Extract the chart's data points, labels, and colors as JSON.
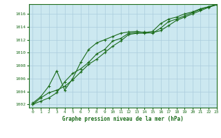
{
  "title": "Graphe pression niveau de la mer (hPa)",
  "background_color": "#cce8f0",
  "outer_background": "#ffffff",
  "line_color": "#1a6b1a",
  "grid_color": "#aaccdd",
  "xlim": [
    -0.5,
    23
  ],
  "ylim": [
    1001.5,
    1017.5
  ],
  "yticks": [
    1002,
    1004,
    1006,
    1008,
    1010,
    1012,
    1014,
    1016
  ],
  "xticks": [
    0,
    1,
    2,
    3,
    4,
    5,
    6,
    7,
    8,
    9,
    10,
    11,
    12,
    13,
    14,
    15,
    16,
    17,
    18,
    19,
    20,
    21,
    22,
    23
  ],
  "line1_x": [
    0,
    1,
    2,
    3,
    4,
    5,
    6,
    7,
    8,
    9,
    10,
    11,
    12,
    13,
    14,
    15,
    16,
    17,
    18,
    19,
    20,
    21,
    22,
    23
  ],
  "line1_y": [
    1002.0,
    1003.0,
    1003.8,
    1004.2,
    1004.8,
    1005.8,
    1007.0,
    1008.2,
    1009.0,
    1010.0,
    1011.0,
    1011.8,
    1012.8,
    1013.0,
    1013.0,
    1013.1,
    1013.4,
    1014.2,
    1015.0,
    1015.5,
    1016.0,
    1016.5,
    1017.0,
    1017.4
  ],
  "line2_x": [
    0,
    1,
    2,
    3,
    4,
    5,
    6,
    7,
    8,
    9,
    10,
    11,
    12,
    13,
    14,
    15,
    16,
    17,
    18,
    19,
    20,
    21,
    22,
    23
  ],
  "line2_y": [
    1002.2,
    1003.2,
    1004.8,
    1007.2,
    1004.2,
    1006.0,
    1008.5,
    1010.5,
    1011.5,
    1012.0,
    1012.5,
    1013.0,
    1013.2,
    1013.3,
    1013.1,
    1013.3,
    1014.5,
    1015.2,
    1015.5,
    1016.0,
    1016.3,
    1016.8,
    1017.1,
    1017.5
  ],
  "line3_x": [
    0,
    1,
    2,
    3,
    4,
    5,
    6,
    7,
    8,
    9,
    10,
    11,
    12,
    13,
    14,
    15,
    16,
    17,
    18,
    19,
    20,
    21,
    22,
    23
  ],
  "line3_y": [
    1002.0,
    1002.5,
    1003.0,
    1003.8,
    1005.5,
    1006.8,
    1007.5,
    1008.5,
    1009.8,
    1010.5,
    1011.8,
    1012.2,
    1013.0,
    1013.1,
    1013.2,
    1013.0,
    1013.8,
    1014.8,
    1015.2,
    1015.7,
    1016.2,
    1016.7,
    1017.1,
    1017.4
  ]
}
